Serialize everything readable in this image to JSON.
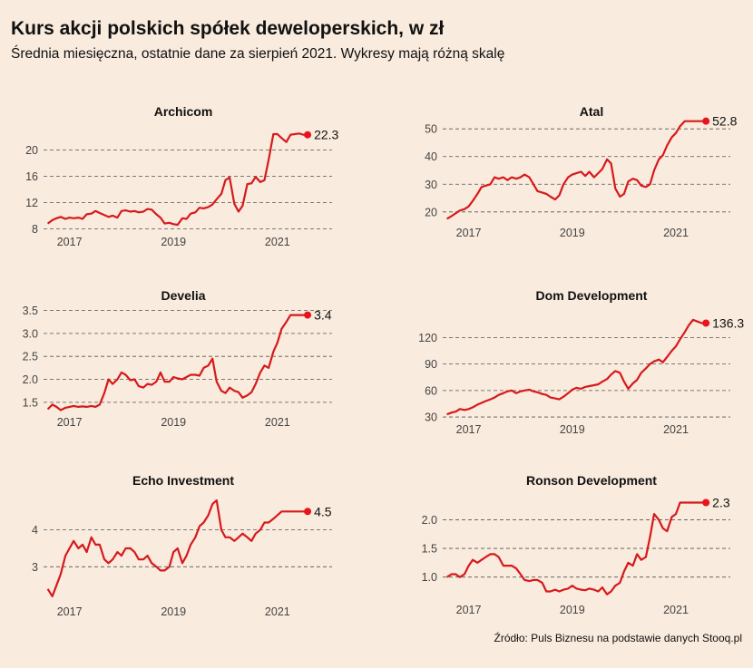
{
  "header": {
    "title": "Kurs akcji polskich spółek deweloperskich, w zł",
    "subtitle": "Średnia miesięczna, ostatnie dane za sierpień 2021. Wykresy mają różną skalę"
  },
  "footer": {
    "source": "Źródło: Puls Biznesu na podstawie danych Stooq.pl"
  },
  "colors": {
    "background": "#f9ebdd",
    "line": "#d7191c",
    "dot": "#e8141b"
  },
  "chart_data": [
    {
      "type": "line",
      "title": "Archicom",
      "x_ticks": [
        "2017",
        "2019",
        "2021"
      ],
      "y_ticks": [
        "8",
        "12",
        "16",
        "20"
      ],
      "ylim": [
        7.5,
        23.5
      ],
      "end_label": "22.3",
      "series": [
        {
          "x": [
            2016.58,
            2016.67,
            2016.75,
            2016.83,
            2016.92,
            2017.0,
            2017.08,
            2017.17,
            2017.25,
            2017.33,
            2017.42,
            2017.5,
            2017.58,
            2017.67,
            2017.75,
            2017.83,
            2017.92,
            2018.0,
            2018.08,
            2018.17,
            2018.25,
            2018.33,
            2018.42,
            2018.5,
            2018.58,
            2018.67,
            2018.75,
            2018.83,
            2018.92,
            2019.0,
            2019.08,
            2019.17,
            2019.25,
            2019.33,
            2019.42,
            2019.5,
            2019.58,
            2019.67,
            2019.75,
            2019.83,
            2019.92,
            2020.0,
            2020.08,
            2020.17,
            2020.25,
            2020.33,
            2020.42,
            2020.5,
            2020.58,
            2020.67,
            2020.75,
            2020.83,
            2020.92,
            2021.0,
            2021.08,
            2021.17,
            2021.25,
            2021.33,
            2021.42,
            2021.5,
            2021.58
          ],
          "y": [
            8.8,
            9.3,
            9.6,
            9.8,
            9.5,
            9.7,
            9.6,
            9.7,
            9.5,
            10.2,
            10.3,
            10.7,
            10.4,
            10.1,
            9.8,
            10.0,
            9.7,
            10.7,
            10.8,
            10.6,
            10.7,
            10.5,
            10.6,
            11.0,
            10.9,
            10.2,
            9.7,
            8.8,
            8.9,
            8.7,
            8.6,
            9.6,
            9.5,
            10.3,
            10.5,
            11.2,
            11.1,
            11.3,
            11.7,
            12.5,
            13.3,
            15.4,
            15.8,
            11.8,
            10.6,
            11.5,
            14.8,
            14.9,
            15.9,
            15.1,
            15.4,
            18.5,
            22.4,
            22.4,
            21.8,
            21.2,
            22.3,
            22.4,
            22.5,
            22.3,
            22.3
          ]
        }
      ]
    },
    {
      "type": "line",
      "title": "Atal",
      "x_ticks": [
        "2017",
        "2019",
        "2021"
      ],
      "y_ticks": [
        "20",
        "30",
        "40",
        "50"
      ],
      "ylim": [
        16,
        54
      ],
      "end_label": "52.8",
      "series": [
        {
          "x": [
            2016.58,
            2016.67,
            2016.75,
            2016.83,
            2016.92,
            2017.0,
            2017.08,
            2017.17,
            2017.25,
            2017.33,
            2017.42,
            2017.5,
            2017.58,
            2017.67,
            2017.75,
            2017.83,
            2017.92,
            2018.0,
            2018.08,
            2018.17,
            2018.25,
            2018.33,
            2018.42,
            2018.5,
            2018.58,
            2018.67,
            2018.75,
            2018.83,
            2018.92,
            2019.0,
            2019.08,
            2019.17,
            2019.25,
            2019.33,
            2019.42,
            2019.5,
            2019.58,
            2019.67,
            2019.75,
            2019.83,
            2019.92,
            2020.0,
            2020.08,
            2020.17,
            2020.25,
            2020.33,
            2020.42,
            2020.5,
            2020.58,
            2020.67,
            2020.75,
            2020.83,
            2020.92,
            2021.0,
            2021.08,
            2021.17,
            2021.25,
            2021.33,
            2021.42,
            2021.5,
            2021.58
          ],
          "y": [
            17.5,
            18.5,
            19.5,
            20.5,
            21.0,
            22.0,
            24.0,
            26.5,
            29.0,
            29.5,
            30.0,
            32.5,
            32.0,
            32.5,
            31.5,
            32.5,
            32.0,
            32.5,
            33.5,
            32.5,
            30.0,
            27.5,
            27.0,
            26.5,
            25.5,
            24.5,
            26.0,
            30.0,
            32.5,
            33.5,
            34.0,
            34.5,
            33.0,
            34.5,
            32.5,
            34.0,
            35.5,
            39.0,
            37.5,
            28.5,
            25.5,
            26.5,
            31.0,
            32.0,
            31.5,
            29.5,
            29.0,
            30.0,
            35.0,
            39.0,
            40.5,
            44.0,
            47.0,
            48.5,
            51.0,
            52.8,
            52.8,
            52.8,
            52.8,
            52.8,
            52.8
          ]
        }
      ]
    },
    {
      "type": "line",
      "title": "Develia",
      "x_ticks": [
        "2017",
        "2019",
        "2021"
      ],
      "y_ticks": [
        "1.5",
        "2.0",
        "2.5",
        "3.0",
        "3.5"
      ],
      "ylim": [
        1.28,
        3.55
      ],
      "end_label": "3.4",
      "series": [
        {
          "x": [
            2016.58,
            2016.67,
            2016.75,
            2016.83,
            2016.92,
            2017.0,
            2017.08,
            2017.17,
            2017.25,
            2017.33,
            2017.42,
            2017.5,
            2017.58,
            2017.67,
            2017.75,
            2017.83,
            2017.92,
            2018.0,
            2018.08,
            2018.17,
            2018.25,
            2018.33,
            2018.42,
            2018.5,
            2018.58,
            2018.67,
            2018.75,
            2018.83,
            2018.92,
            2019.0,
            2019.08,
            2019.17,
            2019.25,
            2019.33,
            2019.42,
            2019.5,
            2019.58,
            2019.67,
            2019.75,
            2019.83,
            2019.92,
            2020.0,
            2020.08,
            2020.17,
            2020.25,
            2020.33,
            2020.42,
            2020.5,
            2020.58,
            2020.67,
            2020.75,
            2020.83,
            2020.92,
            2021.0,
            2021.08,
            2021.17,
            2021.25,
            2021.33,
            2021.42,
            2021.5,
            2021.58
          ],
          "y": [
            1.35,
            1.45,
            1.4,
            1.33,
            1.38,
            1.4,
            1.42,
            1.4,
            1.41,
            1.4,
            1.42,
            1.4,
            1.45,
            1.7,
            2.0,
            1.9,
            2.0,
            2.15,
            2.1,
            1.98,
            2.0,
            1.85,
            1.82,
            1.9,
            1.88,
            1.95,
            2.15,
            1.95,
            1.95,
            2.05,
            2.02,
            2.0,
            2.05,
            2.1,
            2.1,
            2.08,
            2.25,
            2.3,
            2.45,
            1.95,
            1.75,
            1.7,
            1.82,
            1.75,
            1.72,
            1.6,
            1.65,
            1.72,
            1.9,
            2.15,
            2.3,
            2.25,
            2.6,
            2.8,
            3.1,
            3.25,
            3.4,
            3.4,
            3.4,
            3.4,
            3.4
          ]
        }
      ]
    },
    {
      "type": "line",
      "title": "Dom Development",
      "x_ticks": [
        "2017",
        "2019",
        "2021"
      ],
      "y_ticks": [
        "30",
        "60",
        "90",
        "120"
      ],
      "ylim": [
        27,
        145
      ],
      "end_label": "136.3",
      "series": [
        {
          "x": [
            2016.58,
            2016.67,
            2016.75,
            2016.83,
            2016.92,
            2017.0,
            2017.08,
            2017.17,
            2017.25,
            2017.33,
            2017.42,
            2017.5,
            2017.58,
            2017.67,
            2017.75,
            2017.83,
            2017.92,
            2018.0,
            2018.08,
            2018.17,
            2018.25,
            2018.33,
            2018.42,
            2018.5,
            2018.58,
            2018.67,
            2018.75,
            2018.83,
            2018.92,
            2019.0,
            2019.08,
            2019.17,
            2019.25,
            2019.33,
            2019.42,
            2019.5,
            2019.58,
            2019.67,
            2019.75,
            2019.83,
            2019.92,
            2020.0,
            2020.08,
            2020.17,
            2020.25,
            2020.33,
            2020.42,
            2020.5,
            2020.58,
            2020.67,
            2020.75,
            2020.83,
            2020.92,
            2021.0,
            2021.08,
            2021.17,
            2021.25,
            2021.33,
            2021.42,
            2021.5,
            2021.58
          ],
          "y": [
            33,
            35,
            36,
            39,
            38,
            39,
            41,
            44,
            46,
            48,
            50,
            52,
            55,
            57,
            59,
            60,
            57,
            59,
            60,
            61,
            59,
            58,
            56,
            55,
            52,
            51,
            50,
            53,
            57,
            61,
            63,
            62,
            64,
            65,
            66,
            67,
            70,
            73,
            78,
            82,
            80,
            70,
            62,
            68,
            72,
            80,
            85,
            90,
            93,
            95,
            92,
            98,
            105,
            110,
            118,
            126,
            134,
            140,
            138,
            136.3,
            136.3
          ]
        }
      ]
    },
    {
      "type": "line",
      "title": "Echo Investment",
      "x_ticks": [
        "2017",
        "2019",
        "2021"
      ],
      "y_ticks": [
        "3",
        "4"
      ],
      "ylim": [
        2.05,
        4.9
      ],
      "end_label": "4.5",
      "series": [
        {
          "x": [
            2016.58,
            2016.67,
            2016.75,
            2016.83,
            2016.92,
            2017.0,
            2017.08,
            2017.17,
            2017.25,
            2017.33,
            2017.42,
            2017.5,
            2017.58,
            2017.67,
            2017.75,
            2017.83,
            2017.92,
            2018.0,
            2018.08,
            2018.17,
            2018.25,
            2018.33,
            2018.42,
            2018.5,
            2018.58,
            2018.67,
            2018.75,
            2018.83,
            2018.92,
            2019.0,
            2019.08,
            2019.17,
            2019.25,
            2019.33,
            2019.42,
            2019.5,
            2019.58,
            2019.67,
            2019.75,
            2019.83,
            2019.92,
            2020.0,
            2020.08,
            2020.17,
            2020.25,
            2020.33,
            2020.42,
            2020.5,
            2020.58,
            2020.67,
            2020.75,
            2020.83,
            2020.92,
            2021.0,
            2021.08,
            2021.17,
            2021.25,
            2021.33,
            2021.42,
            2021.5,
            2021.58
          ],
          "y": [
            2.4,
            2.2,
            2.5,
            2.8,
            3.3,
            3.5,
            3.7,
            3.5,
            3.6,
            3.4,
            3.8,
            3.6,
            3.6,
            3.2,
            3.1,
            3.2,
            3.4,
            3.3,
            3.5,
            3.5,
            3.4,
            3.2,
            3.2,
            3.3,
            3.1,
            3.0,
            2.9,
            2.9,
            3.0,
            3.4,
            3.5,
            3.1,
            3.3,
            3.6,
            3.8,
            4.1,
            4.2,
            4.4,
            4.7,
            4.8,
            4.0,
            3.8,
            3.8,
            3.7,
            3.8,
            3.9,
            3.8,
            3.7,
            3.9,
            4.0,
            4.2,
            4.2,
            4.3,
            4.4,
            4.5,
            4.5,
            4.5,
            4.5,
            4.5,
            4.5,
            4.5
          ]
        }
      ]
    },
    {
      "type": "line",
      "title": "Ronson Development",
      "x_ticks": [
        "2017",
        "2019",
        "2021"
      ],
      "y_ticks": [
        "1.0",
        "1.5",
        "2.0"
      ],
      "ylim": [
        0.6,
        2.45
      ],
      "end_label": "2.3",
      "series": [
        {
          "x": [
            2016.58,
            2016.67,
            2016.75,
            2016.83,
            2016.92,
            2017.0,
            2017.08,
            2017.17,
            2017.25,
            2017.33,
            2017.42,
            2017.5,
            2017.58,
            2017.67,
            2017.75,
            2017.83,
            2017.92,
            2018.0,
            2018.08,
            2018.17,
            2018.25,
            2018.33,
            2018.42,
            2018.5,
            2018.58,
            2018.67,
            2018.75,
            2018.83,
            2018.92,
            2019.0,
            2019.08,
            2019.17,
            2019.25,
            2019.33,
            2019.42,
            2019.5,
            2019.58,
            2019.67,
            2019.75,
            2019.83,
            2019.92,
            2020.0,
            2020.08,
            2020.17,
            2020.25,
            2020.33,
            2020.42,
            2020.5,
            2020.58,
            2020.67,
            2020.75,
            2020.83,
            2020.92,
            2021.0,
            2021.08,
            2021.17,
            2021.25,
            2021.33,
            2021.42,
            2021.5,
            2021.58
          ],
          "y": [
            1.0,
            1.05,
            1.05,
            1.0,
            1.05,
            1.2,
            1.3,
            1.25,
            1.3,
            1.35,
            1.4,
            1.4,
            1.35,
            1.2,
            1.2,
            1.2,
            1.15,
            1.05,
            0.95,
            0.93,
            0.95,
            0.95,
            0.9,
            0.75,
            0.75,
            0.78,
            0.75,
            0.78,
            0.8,
            0.85,
            0.8,
            0.78,
            0.77,
            0.8,
            0.78,
            0.75,
            0.82,
            0.7,
            0.75,
            0.85,
            0.9,
            1.1,
            1.25,
            1.2,
            1.4,
            1.3,
            1.35,
            1.7,
            2.1,
            2.0,
            1.85,
            1.8,
            2.05,
            2.1,
            2.3,
            2.3,
            2.3,
            2.3,
            2.3,
            2.3,
            2.3
          ]
        }
      ]
    }
  ]
}
